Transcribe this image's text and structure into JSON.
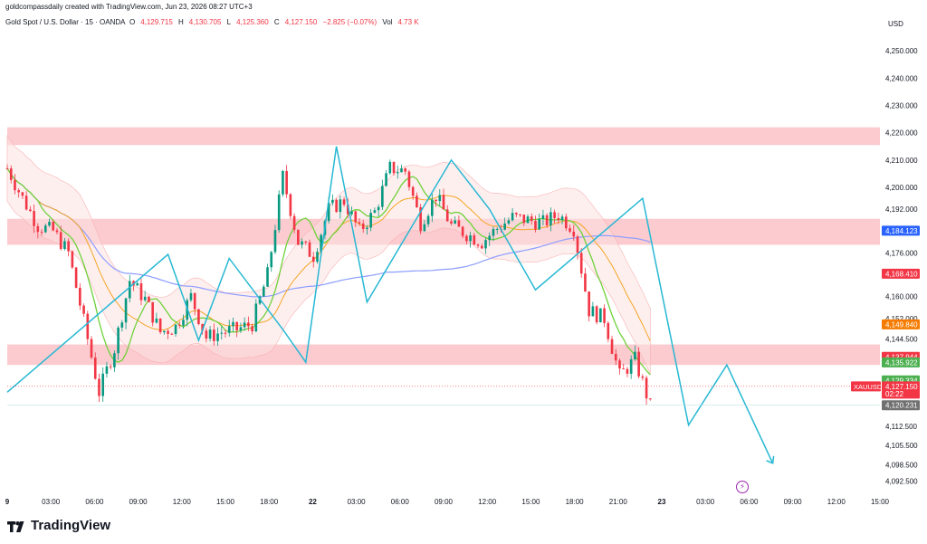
{
  "credit": "goldcompassdaily created with TradingView.com, Jun 23, 2026 08:27 UTC+3",
  "symbol_title": "Gold Spot / U.S. Dollar · 15 · OANDA",
  "ohlc": {
    "o_label": "O",
    "o": "4,129.715",
    "h_label": "H",
    "h": "4,130.705",
    "l_label": "L",
    "l": "4,125.360",
    "c_label": "C",
    "c": "4,127.150",
    "change": "−2.825 (−0.07%)",
    "vol_label": "Vol",
    "vol": "4.73 K"
  },
  "currency": "USD",
  "brand": "TradingView",
  "colors": {
    "up": "#089981",
    "down": "#f23645",
    "zone": "#f7a1a8",
    "fast_ma": "#6fd13a",
    "slow_ma": "#f5a623",
    "long_ma": "#8c9eff",
    "zigzag": "#26b8d3",
    "band_fill": "#fde2e2",
    "up_fill": "#e6f6e6"
  },
  "chart_data": {
    "type": "candlestick",
    "y_axis_ticks": [
      "4,250.000",
      "4,240.000",
      "4,230.000",
      "4,220.000",
      "4,210.000",
      "4,200.000",
      "4,192.000",
      "4,184.000",
      "4,176.000",
      "4,168.000",
      "4,160.000",
      "4,152.000",
      "4,144.500",
      "4,136.500",
      "4,128.500",
      "4,120.000",
      "4,112.500",
      "4,105.500",
      "4,098.500",
      "4,092.500"
    ],
    "y_range": [
      4088,
      4258
    ],
    "x_axis_ticks": [
      "9",
      "03:00",
      "06:00",
      "09:00",
      "12:00",
      "15:00",
      "18:00",
      "22",
      "03:00",
      "06:00",
      "09:00",
      "12:00",
      "15:00",
      "18:00",
      "21:00",
      "23",
      "03:00",
      "06:00",
      "09:00",
      "12:00",
      "15:00"
    ],
    "price_labels": [
      {
        "value": 4184.123,
        "text": "4,184.123",
        "color": "#2962ff"
      },
      {
        "value": 4168.41,
        "text": "4,168.410",
        "color": "#f23645"
      },
      {
        "value": 4149.84,
        "text": "4,149.840",
        "color": "#f57c00"
      },
      {
        "value": 4137.944,
        "text": "4,137.944",
        "color": "#f23645"
      },
      {
        "value": 4135.922,
        "text": "4,135.922",
        "color": "#4caf50"
      },
      {
        "value": 4129.334,
        "text": "4,129.334",
        "color": "#4caf50"
      },
      {
        "value": 4127.15,
        "text": "4,127.150",
        "color": "#f23645",
        "tag": "XAUUSD",
        "countdown": "02:22"
      },
      {
        "value": 4120.231,
        "text": "4,120.231",
        "color": "#707070"
      }
    ],
    "zones": [
      {
        "top": 4222.0,
        "bottom": 4215.5
      },
      {
        "top": 4188.5,
        "bottom": 4179.0
      },
      {
        "top": 4142.5,
        "bottom": 4135.0
      }
    ],
    "zigzag": [
      [
        0,
        4125
      ],
      [
        10.5,
        4175.5
      ],
      [
        12.5,
        4144
      ],
      [
        14.5,
        4174
      ],
      [
        18,
        4148
      ],
      [
        19.5,
        4136
      ],
      [
        21.5,
        4215
      ],
      [
        23.5,
        4158
      ],
      [
        29,
        4210
      ],
      [
        31.5,
        4192
      ],
      [
        34.5,
        4162.5
      ],
      [
        41.5,
        4196
      ],
      [
        44.5,
        4113
      ],
      [
        47,
        4135
      ],
      [
        50,
        4099
      ]
    ],
    "price_series": [
      4207,
      4196,
      4186,
      4184,
      4176,
      4151,
      4125,
      4141,
      4166,
      4159,
      4147,
      4149,
      4160,
      4145,
      4147,
      4148,
      4150,
      4168,
      4204,
      4180,
      4175,
      4192,
      4195,
      4184,
      4191,
      4207,
      4206,
      4187,
      4197,
      4186,
      4183,
      4180,
      4185,
      4189,
      4188,
      4187,
      4190,
      4185,
      4155,
      4152,
      4131,
      4137,
      4120
    ]
  }
}
